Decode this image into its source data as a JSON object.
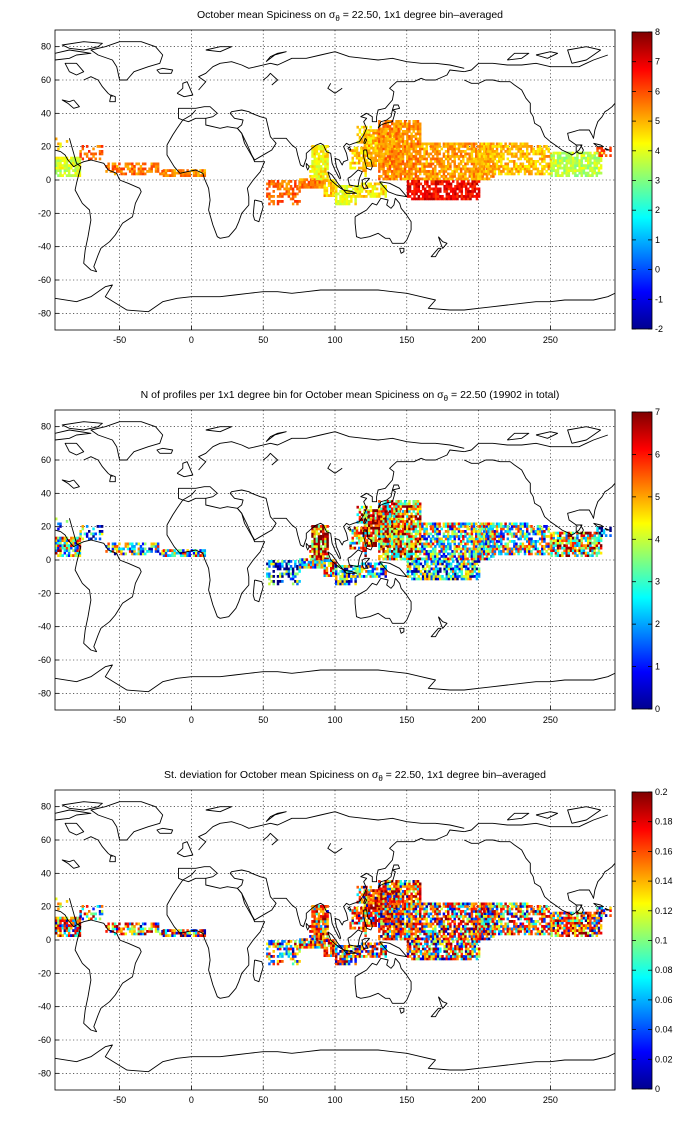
{
  "panels": [
    {
      "title_a": "October mean Spiciness on ",
      "title_sym": "σ",
      "title_sub": "θ",
      "title_b": " = 22.50, 1x1 degree bin–averaged",
      "colorbar": {
        "min": -2,
        "max": 8,
        "ticks": [
          "-2",
          "-1",
          "0",
          "1",
          "2",
          "3",
          "4",
          "5",
          "6",
          "7",
          "8"
        ]
      },
      "field": "spiciness"
    },
    {
      "title_a": "N of profiles per 1x1 degree bin for October mean Spiciness on ",
      "title_sym": "σ",
      "title_sub": "θ",
      "title_b": " = 22.50 (19902 in total)",
      "colorbar": {
        "min": 0,
        "max": 7,
        "ticks": [
          "0",
          "1",
          "2",
          "3",
          "4",
          "5",
          "6",
          "7"
        ]
      },
      "field": "count"
    },
    {
      "title_a": "St. deviation for October mean Spiciness on ",
      "title_sym": "σ",
      "title_sub": "θ",
      "title_b": " = 22.50, 1x1 degree bin–averaged",
      "colorbar": {
        "min": 0,
        "max": 0.2,
        "ticks": [
          "0",
          "0.02",
          "0.04",
          "0.06",
          "0.08",
          "0.1",
          "0.12",
          "0.14",
          "0.16",
          "0.18",
          "0.2"
        ]
      },
      "field": "stdev"
    }
  ],
  "axes": {
    "x_ticks": [
      "-50",
      "0",
      "50",
      "100",
      "150",
      "200",
      "250"
    ],
    "y_ticks": [
      "80",
      "60",
      "40",
      "20",
      "0",
      "-20",
      "-40",
      "-60",
      "-80"
    ],
    "x_range": [
      -95,
      295
    ],
    "y_range": [
      -90,
      90
    ]
  },
  "colormap": "jet"
}
